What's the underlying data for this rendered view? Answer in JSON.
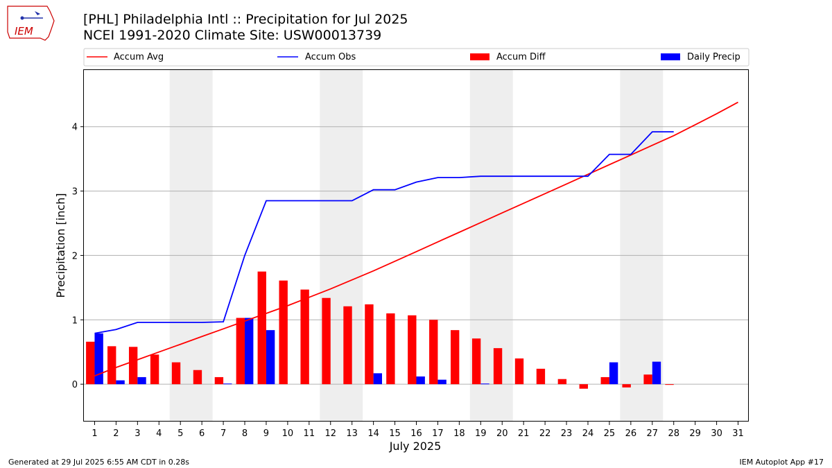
{
  "logo": {
    "text": "IEM",
    "color": "#cc0000"
  },
  "header": {
    "title_line1": "[PHL] Philadelphia Intl :: Precipitation for Jul 2025",
    "title_line2": "NCEI 1991-2020 Climate Site: USW00013739"
  },
  "footer": {
    "left": "Generated at 29 Jul 2025 6:55 AM CDT in 0.28s",
    "right": "IEM Autoplot App #17"
  },
  "colors": {
    "accum_avg": "#ff0000",
    "accum_obs": "#0000ff",
    "accum_diff": "#ff0000",
    "daily_precip": "#0000ff",
    "weekend_shade": "#eeeeee",
    "grid": "#b0b0b0"
  },
  "chart_data": {
    "type": "bar",
    "xlabel": "July 2025",
    "ylabel": "Precipitation [inch]",
    "ylim": [
      -0.58,
      4.88
    ],
    "yticks": [
      0,
      1,
      2,
      3,
      4
    ],
    "grid": true,
    "legend_position": "top",
    "x": [
      1,
      2,
      3,
      4,
      5,
      6,
      7,
      8,
      9,
      10,
      11,
      12,
      13,
      14,
      15,
      16,
      17,
      18,
      19,
      20,
      21,
      22,
      23,
      24,
      25,
      26,
      27,
      28,
      29,
      30,
      31
    ],
    "shaded_weekends": [
      [
        5,
        6
      ],
      [
        12,
        13
      ],
      [
        19,
        20
      ],
      [
        26,
        27
      ]
    ],
    "series": [
      {
        "name": "Accum Avg",
        "kind": "line",
        "values": [
          0.13,
          0.26,
          0.38,
          0.5,
          0.62,
          0.74,
          0.86,
          0.98,
          1.1,
          1.22,
          1.35,
          1.48,
          1.62,
          1.76,
          1.91,
          2.06,
          2.21,
          2.36,
          2.51,
          2.66,
          2.81,
          2.96,
          3.11,
          3.26,
          3.41,
          3.56,
          3.71,
          3.86,
          4.03,
          4.2,
          4.38
        ]
      },
      {
        "name": "Accum Obs",
        "kind": "line",
        "values": [
          0.79,
          0.85,
          0.96,
          0.96,
          0.96,
          0.96,
          0.97,
          2.0,
          2.85,
          2.85,
          2.85,
          2.85,
          2.85,
          3.02,
          3.02,
          3.14,
          3.21,
          3.21,
          3.23,
          3.23,
          3.23,
          3.23,
          3.23,
          3.23,
          3.57,
          3.57,
          3.92,
          3.92,
          null,
          null,
          null
        ]
      },
      {
        "name": "Accum Diff",
        "kind": "bar",
        "values": [
          0.66,
          0.59,
          0.58,
          0.46,
          0.34,
          0.22,
          0.11,
          1.03,
          1.75,
          1.61,
          1.47,
          1.34,
          1.21,
          1.24,
          1.1,
          1.07,
          1.0,
          0.84,
          0.71,
          0.56,
          0.4,
          0.24,
          0.08,
          -0.07,
          0.11,
          -0.05,
          0.15,
          -0.01,
          null,
          null,
          null
        ]
      },
      {
        "name": "Daily Precip",
        "kind": "bar",
        "values": [
          0.79,
          0.06,
          0.11,
          0,
          0,
          0,
          0.01,
          1.03,
          0.84,
          0,
          0,
          0,
          0,
          0.17,
          0,
          0.12,
          0.07,
          0,
          0.01,
          0,
          0,
          0,
          0,
          0,
          0.34,
          0,
          0.35,
          0,
          null,
          null,
          null
        ]
      }
    ]
  }
}
